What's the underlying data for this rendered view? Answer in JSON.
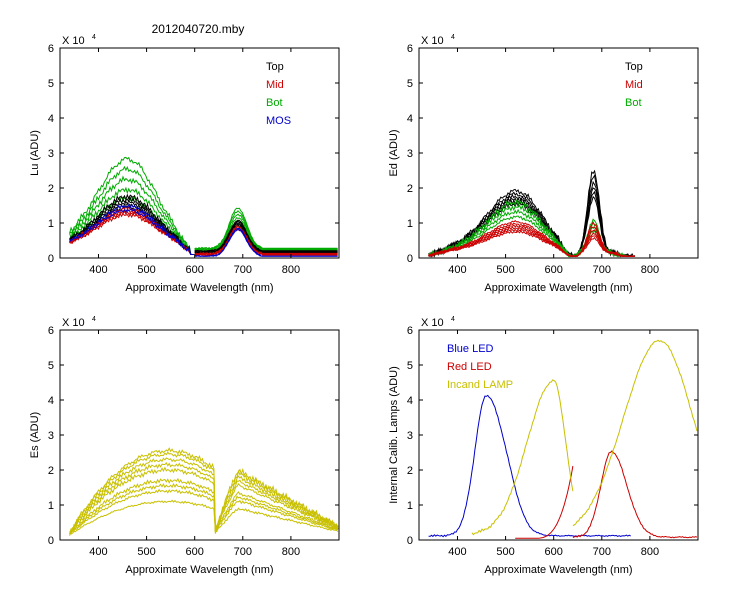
{
  "figure_title": "2012040720.mby",
  "chart_data": [
    {
      "id": "lu",
      "type": "line",
      "ylabel": "Lu (ADU)",
      "xlabel": "Approximate Wavelength (nm)",
      "exponent_label": "X 10",
      "exponent_power": "4",
      "xlim": [
        320,
        900
      ],
      "ylim": [
        0,
        6
      ],
      "xticks": [
        400,
        500,
        600,
        700,
        800
      ],
      "yticks": [
        0,
        1,
        2,
        3,
        4,
        5,
        6
      ],
      "legend_position": "top-right",
      "legend": [
        {
          "label": "Top",
          "color": "#000000"
        },
        {
          "label": "Mid",
          "color": "#cc0000"
        },
        {
          "label": "Bot",
          "color": "#00aa00"
        },
        {
          "label": "MOS",
          "color": "#0000cc"
        }
      ],
      "series": [
        {
          "name": "Bot",
          "color": "#00aa00",
          "count": 5,
          "scales": [
            2.9,
            2.6,
            2.3,
            2.0,
            1.75
          ],
          "shape": "lu"
        },
        {
          "name": "Top",
          "color": "#000000",
          "count": 5,
          "scales": [
            1.8,
            1.7,
            1.62,
            1.55,
            1.48
          ],
          "shape": "lu"
        },
        {
          "name": "Mid",
          "color": "#cc0000",
          "count": 4,
          "scales": [
            1.45,
            1.38,
            1.32,
            1.26
          ],
          "shape": "lu"
        },
        {
          "name": "MOS",
          "color": "#0000cc",
          "count": 2,
          "scales": [
            1.52,
            1.4
          ],
          "shape": "lu"
        }
      ]
    },
    {
      "id": "ed",
      "type": "line",
      "ylabel": "Ed (ADU)",
      "xlabel": "Approximate Wavelength (nm)",
      "exponent_label": "X 10",
      "exponent_power": "4",
      "xlim": [
        320,
        900
      ],
      "ylim": [
        0,
        6
      ],
      "xticks": [
        400,
        500,
        600,
        700,
        800
      ],
      "yticks": [
        0,
        1,
        2,
        3,
        4,
        5,
        6
      ],
      "legend_position": "top-right",
      "legend": [
        {
          "label": "Top",
          "color": "#000000"
        },
        {
          "label": "Mid",
          "color": "#cc0000"
        },
        {
          "label": "Bot",
          "color": "#00aa00"
        }
      ],
      "series": [
        {
          "name": "Top",
          "color": "#000000",
          "count": 6,
          "scales": [
            1.9,
            1.8,
            1.72,
            1.65,
            1.58,
            1.5
          ],
          "peaks": [
            2.35,
            2.2,
            2.0,
            1.85,
            1.7,
            1.55
          ],
          "shape": "ed"
        },
        {
          "name": "Bot",
          "color": "#00aa00",
          "count": 4,
          "scales": [
            1.55,
            1.4,
            1.25,
            1.1
          ],
          "peaks": [
            0.9,
            0.8,
            0.7,
            0.6
          ],
          "shape": "ed"
        },
        {
          "name": "Mid",
          "color": "#cc0000",
          "count": 6,
          "scales": [
            0.95,
            0.88,
            0.82,
            0.76,
            0.7,
            0.64
          ],
          "peaks": [
            0.85,
            0.75,
            0.65,
            0.55,
            0.48,
            0.4
          ],
          "shape": "ed"
        }
      ]
    },
    {
      "id": "es",
      "type": "line",
      "ylabel": "Es (ADU)",
      "xlabel": "Approximate Wavelength (nm)",
      "exponent_label": "X 10",
      "exponent_power": "4",
      "xlim": [
        320,
        900
      ],
      "ylim": [
        0,
        6
      ],
      "xticks": [
        400,
        500,
        600,
        700,
        800
      ],
      "yticks": [
        0,
        1,
        2,
        3,
        4,
        5,
        6
      ],
      "legend": [],
      "series": [
        {
          "name": "Es",
          "color": "#c8c000",
          "count": 9,
          "scales": [
            2.45,
            2.35,
            2.2,
            2.05,
            1.9,
            1.6,
            1.45,
            1.3,
            1.0
          ],
          "shape": "es"
        }
      ]
    },
    {
      "id": "lamps",
      "type": "line",
      "ylabel": "Internal Calib. Lamps (ADU)",
      "xlabel": "Approximate Wavelength (nm)",
      "exponent_label": "X 10",
      "exponent_power": "4",
      "xlim": [
        320,
        900
      ],
      "ylim": [
        0,
        6
      ],
      "xticks": [
        400,
        500,
        600,
        700,
        800
      ],
      "yticks": [
        0,
        1,
        2,
        3,
        4,
        5,
        6
      ],
      "legend_position": "top-left",
      "legend": [
        {
          "label": "Blue LED",
          "color": "#0000cc"
        },
        {
          "label": "Red LED",
          "color": "#cc0000"
        },
        {
          "label": "Incand LAMP",
          "color": "#c8c000"
        }
      ],
      "series": [
        {
          "name": "Blue LED",
          "color": "#0000cc",
          "shape": "blue_led",
          "peak_nm": 460,
          "peak": 4.0
        },
        {
          "name": "Red LED",
          "color": "#cc0000",
          "shape": "red_led",
          "peak_nm": 720,
          "peak": 2.45
        },
        {
          "name": "Incand LAMP",
          "color": "#c8c000",
          "shape": "incand",
          "peak1_nm": 600,
          "peak1": 4.4,
          "peak2_nm": 820,
          "peak2": 5.6
        }
      ]
    }
  ]
}
